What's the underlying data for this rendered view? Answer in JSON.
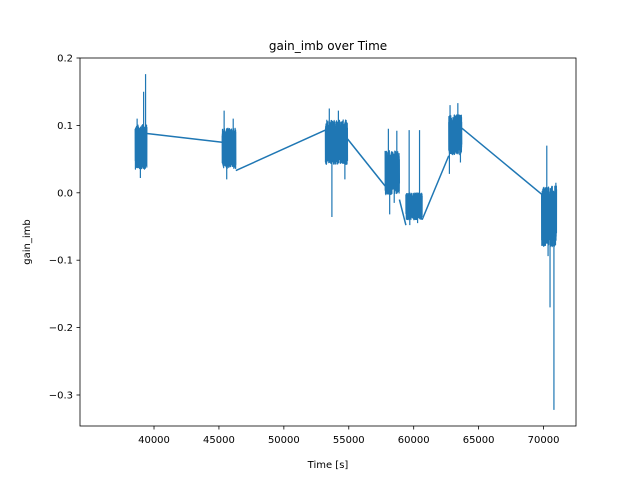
{
  "chart_data": {
    "type": "line",
    "title": "gain_imb over Time",
    "xlabel": "Time [s]",
    "ylabel": "gain_imb",
    "xlim": [
      34300,
      72500
    ],
    "ylim": [
      -0.346,
      0.2
    ],
    "xticks": [
      40000,
      45000,
      50000,
      55000,
      60000,
      65000,
      70000
    ],
    "xtick_labels": [
      "40000",
      "45000",
      "50000",
      "55000",
      "60000",
      "65000",
      "70000"
    ],
    "yticks": [
      0.2,
      0.1,
      0.0,
      -0.1,
      -0.2,
      -0.3
    ],
    "ytick_labels": [
      "0.2",
      "0.1",
      "0.0",
      "−0.1",
      "−0.2",
      "−0.3"
    ],
    "grid": false,
    "series": [
      {
        "color": "#1f77b4",
        "segments": [
          {
            "x_range": [
              38550,
              39450
            ],
            "center": 0.068,
            "spread": 0.033,
            "peaks": [
              [
                39350,
                0.176
              ],
              [
                39200,
                0.15
              ],
              [
                38700,
                0.11
              ],
              [
                38950,
                0.022
              ]
            ]
          },
          {
            "x_range": [
              45250,
              46300
            ],
            "center": 0.066,
            "spread": 0.03,
            "peaks": [
              [
                45400,
                0.122
              ],
              [
                45600,
                0.02
              ],
              [
                46100,
                0.11
              ]
            ]
          },
          {
            "x_range": [
              53200,
              54900
            ],
            "center": 0.075,
            "spread": 0.033,
            "peaks": [
              [
                53700,
                -0.036
              ],
              [
                54200,
                0.122
              ],
              [
                53500,
                0.125
              ],
              [
                54700,
                0.02
              ]
            ]
          },
          {
            "x_range": [
              57800,
              58900
            ],
            "center": 0.03,
            "spread": 0.033,
            "peaks": [
              [
                58050,
                0.095
              ],
              [
                58150,
                -0.032
              ],
              [
                58700,
                0.092
              ],
              [
                58500,
                -0.015
              ]
            ]
          },
          {
            "x_range": [
              59400,
              60650
            ],
            "center": -0.02,
            "spread": 0.02,
            "peaks": [
              [
                59650,
                0.093
              ],
              [
                60450,
                0.093
              ],
              [
                59700,
                -0.048
              ],
              [
                60300,
                -0.045
              ]
            ]
          },
          {
            "x_range": [
              62700,
              63700
            ],
            "center": 0.086,
            "spread": 0.03,
            "peaks": [
              [
                63400,
                0.133
              ],
              [
                62750,
                0.028
              ],
              [
                62800,
                0.13
              ],
              [
                63600,
                0.045
              ]
            ]
          },
          {
            "x_range": [
              69850,
              71000
            ],
            "center": -0.035,
            "spread": 0.045,
            "peaks": [
              [
                70250,
                0.07
              ],
              [
                70800,
                -0.322
              ],
              [
                70500,
                -0.17
              ],
              [
                70350,
                -0.094
              ],
              [
                70950,
                0.015
              ]
            ]
          }
        ],
        "connectors": [
          [
            [
              39450,
              0.088
            ],
            [
              45250,
              0.075
            ]
          ],
          [
            [
              46300,
              0.033
            ],
            [
              53200,
              0.093
            ]
          ],
          [
            [
              54900,
              0.08
            ],
            [
              57800,
              0.01
            ]
          ],
          [
            [
              58900,
              -0.01
            ],
            [
              59400,
              -0.048
            ]
          ],
          [
            [
              60650,
              -0.04
            ],
            [
              62700,
              0.055
            ]
          ],
          [
            [
              63700,
              0.096
            ],
            [
              69850,
              -0.002
            ]
          ]
        ]
      }
    ]
  }
}
